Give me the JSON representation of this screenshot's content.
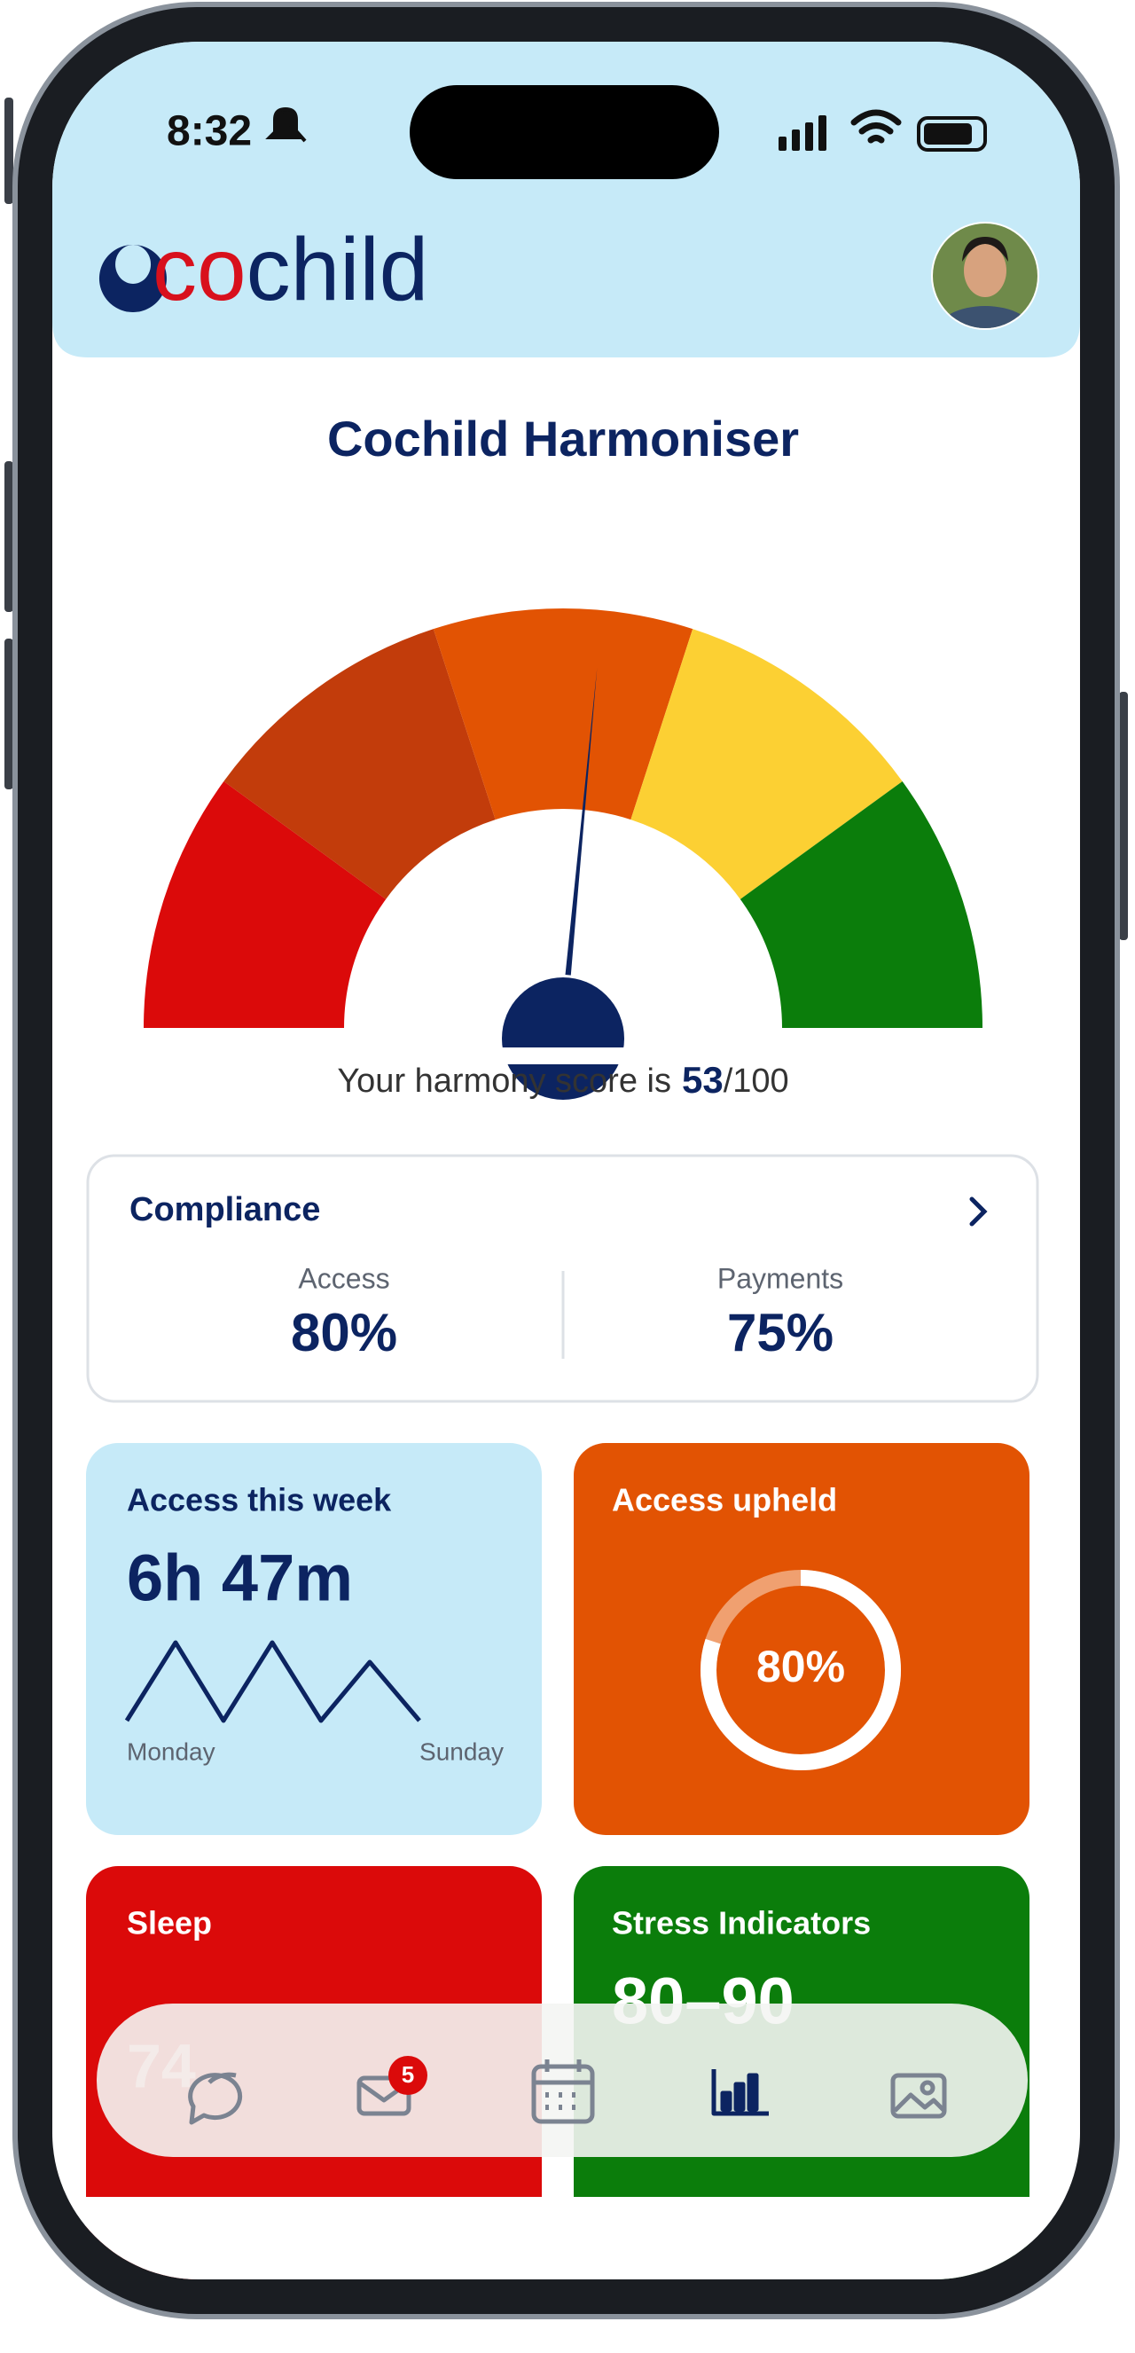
{
  "status_bar": {
    "time": "8:32"
  },
  "header": {
    "logo_prefix": "co",
    "logo_suffix": "child"
  },
  "harmony": {
    "title": "Cochild Harmoniser",
    "score_prefix": "Your harmony score is",
    "score": 53,
    "separator": "/",
    "max": 100
  },
  "compliance": {
    "title": "Compliance",
    "items": [
      {
        "label": "Access",
        "value": "80%"
      },
      {
        "label": "Payments",
        "value": "75%"
      }
    ]
  },
  "cards": {
    "access_week": {
      "title": "Access this week",
      "value": "6h 47m",
      "start_label": "Monday",
      "end_label": "Sunday"
    },
    "access_upheld": {
      "title": "Access upheld",
      "value": 80,
      "label": "80%"
    },
    "sleep": {
      "title": "Sleep",
      "value": "74"
    },
    "stress": {
      "title": "Stress Indicators",
      "value": "80–90"
    }
  },
  "nav": {
    "badge": "5"
  }
}
